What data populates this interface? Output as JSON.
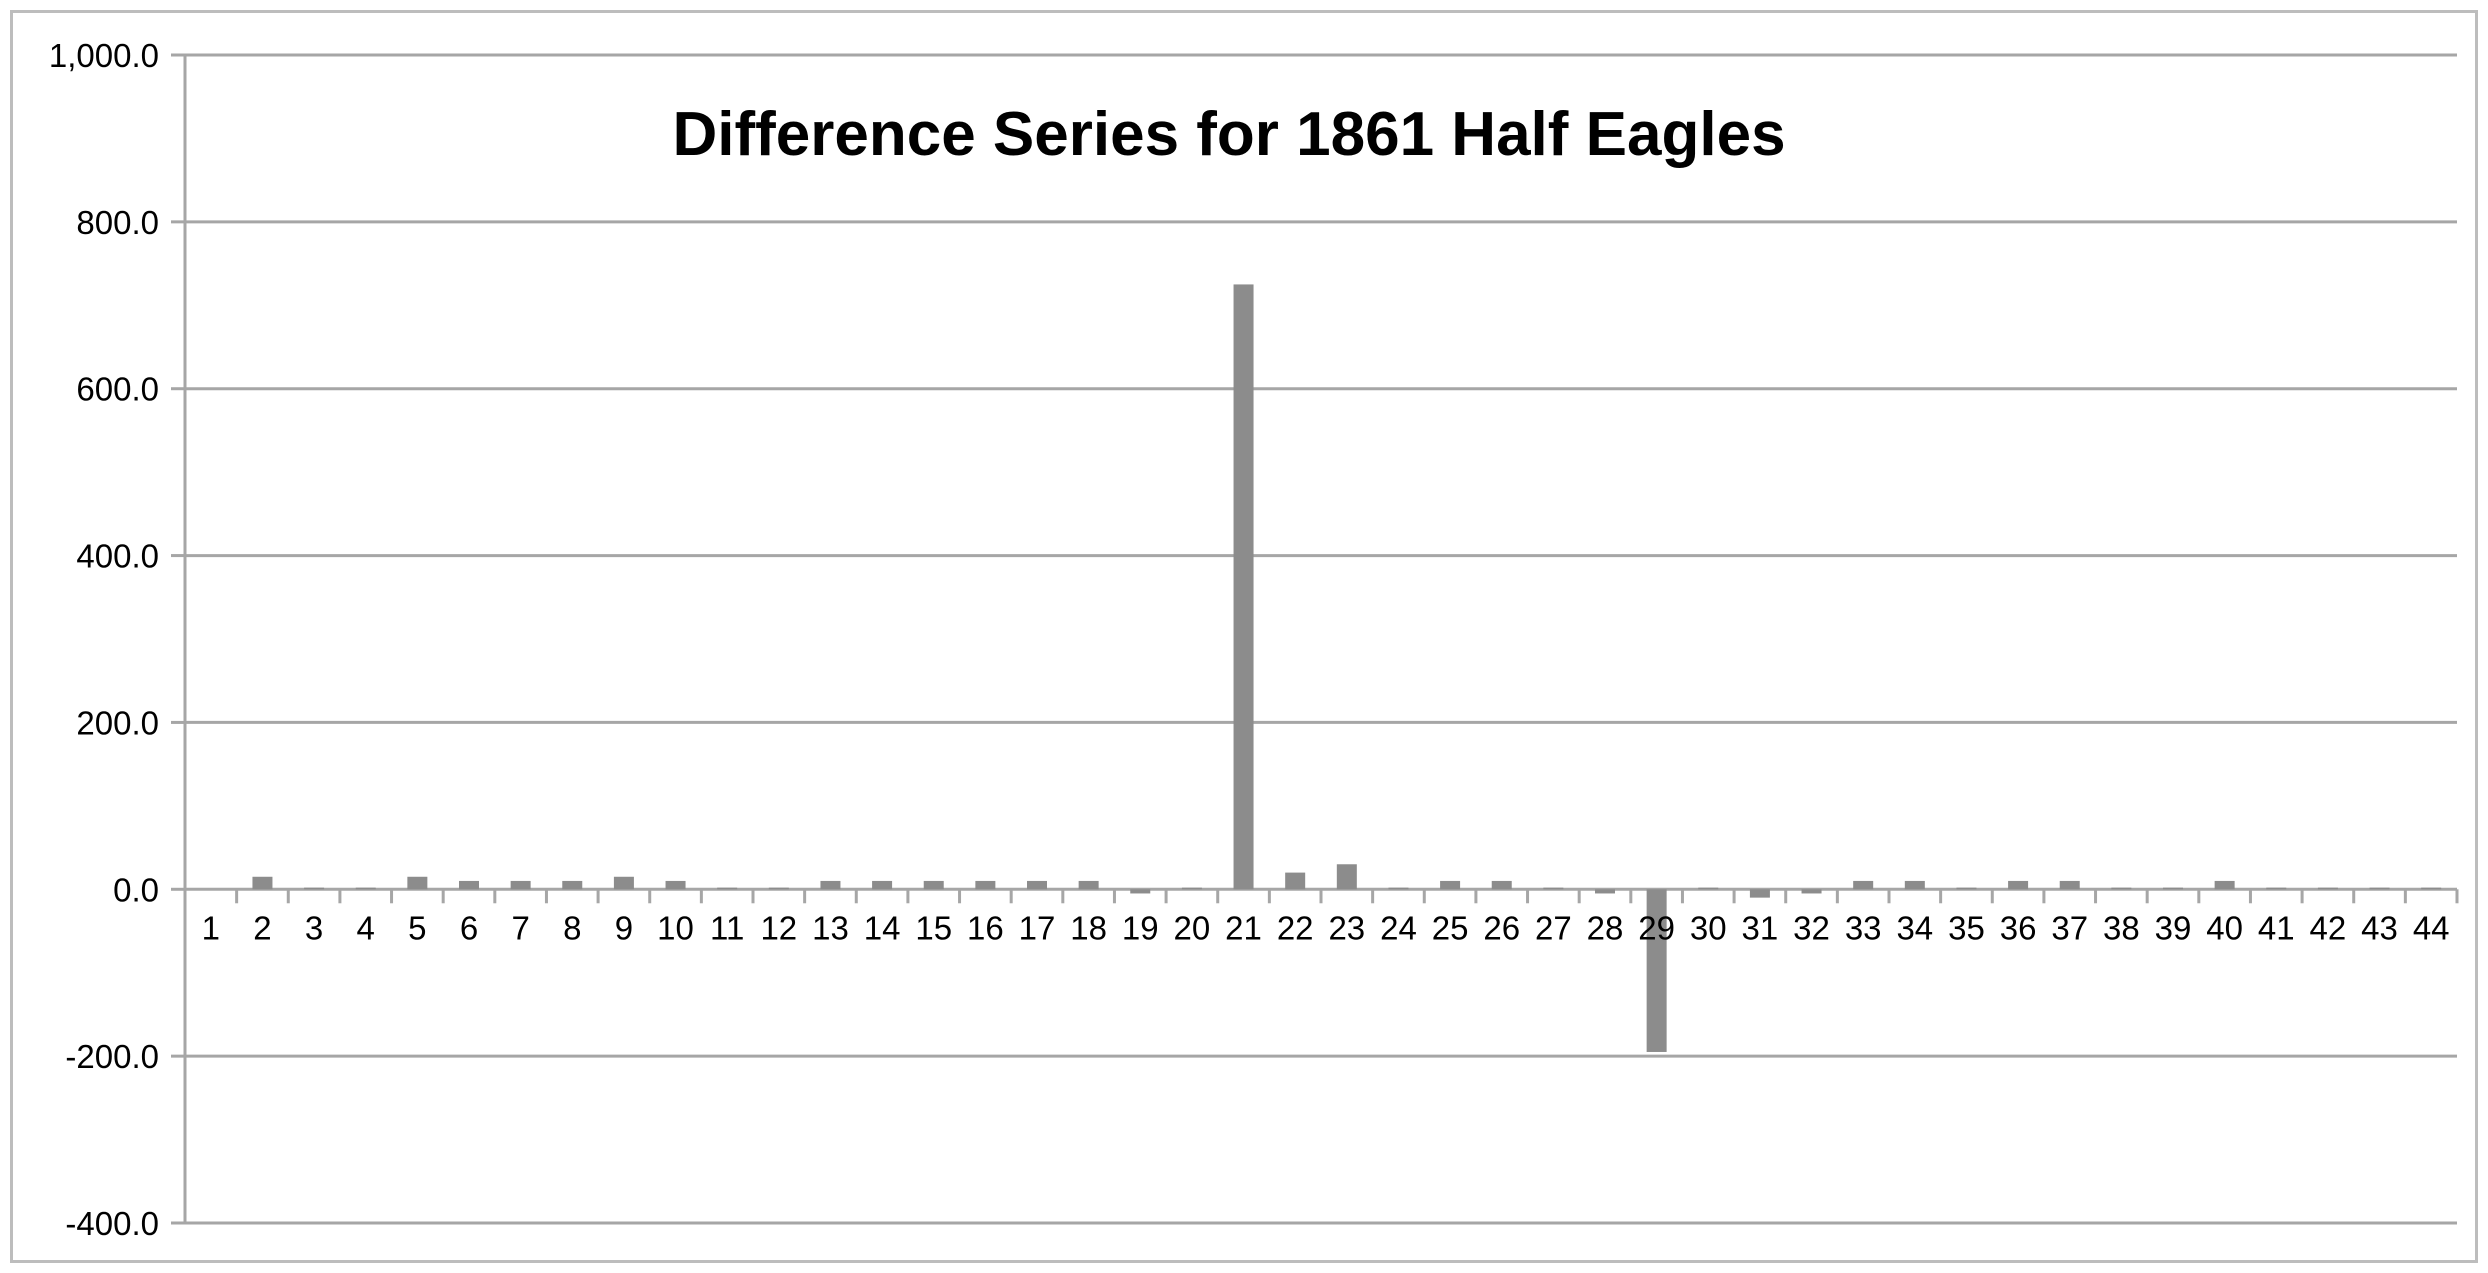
{
  "chart_data": {
    "type": "bar",
    "title": "Difference Series for 1861 Half Eagles",
    "xlabel": "",
    "ylabel": "",
    "ylim": [
      -400,
      1000
    ],
    "y_ticks": [
      -400,
      -200,
      0,
      200,
      400,
      600,
      800,
      1000
    ],
    "y_tick_labels": [
      "-400.0",
      "-200.0",
      "0.0",
      "200.0",
      "400.0",
      "600.0",
      "800.0",
      "1,000.0"
    ],
    "grid": "horizontal",
    "legend": "none",
    "bar_color": "#8c8c8c",
    "grid_color": "#a6a6a6",
    "categories": [
      "1",
      "2",
      "3",
      "4",
      "5",
      "6",
      "7",
      "8",
      "9",
      "10",
      "11",
      "12",
      "13",
      "14",
      "15",
      "16",
      "17",
      "18",
      "19",
      "20",
      "21",
      "22",
      "23",
      "24",
      "25",
      "26",
      "27",
      "28",
      "29",
      "30",
      "31",
      "32",
      "33",
      "34",
      "35",
      "36",
      "37",
      "38",
      "39",
      "40",
      "41",
      "42",
      "43",
      "44"
    ],
    "values": [
      0,
      15,
      2,
      2,
      15,
      10,
      10,
      10,
      15,
      10,
      2,
      2,
      10,
      10,
      10,
      10,
      10,
      10,
      -5,
      2,
      725,
      20,
      30,
      2,
      10,
      10,
      2,
      -5,
      -195,
      2,
      -10,
      -5,
      10,
      10,
      2,
      10,
      10,
      2,
      2,
      10,
      2,
      2,
      2,
      2
    ]
  }
}
